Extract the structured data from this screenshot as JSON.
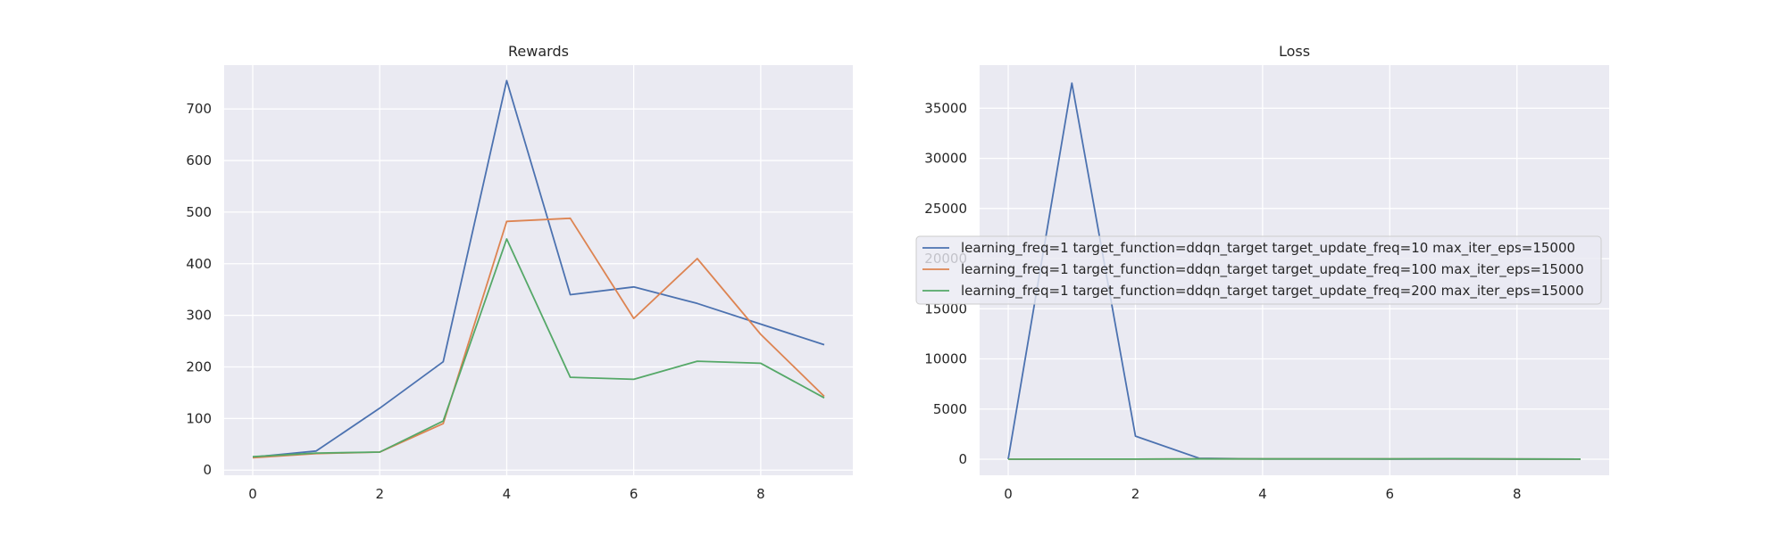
{
  "chart_data": [
    {
      "type": "line",
      "title": "Rewards",
      "xlabel": "",
      "ylabel": "",
      "x": [
        0,
        1,
        2,
        3,
        4,
        5,
        6,
        7,
        8,
        9
      ],
      "xlim": [
        -0.45,
        9.45
      ],
      "ylim": [
        -10,
        785
      ],
      "xticks": [
        0,
        2,
        4,
        6,
        8
      ],
      "yticks": [
        0,
        100,
        200,
        300,
        400,
        500,
        600,
        700
      ],
      "grid": true,
      "series": [
        {
          "name": "learning_freq=1 target_function=ddqn_target target_update_freq=10 max_iter_eps=15000",
          "color": "#4c72b0",
          "values": [
            25,
            37,
            120,
            210,
            755,
            340,
            355,
            323,
            283,
            243
          ]
        },
        {
          "name": "learning_freq=1 target_function=ddqn_target target_update_freq=100 max_iter_eps=15000",
          "color": "#dd8452",
          "values": [
            24,
            32,
            35,
            90,
            482,
            488,
            294,
            410,
            263,
            143
          ]
        },
        {
          "name": "learning_freq=1 target_function=ddqn_target target_update_freq=200 max_iter_eps=15000",
          "color": "#55a868",
          "values": [
            26,
            33,
            35,
            95,
            448,
            180,
            176,
            211,
            207,
            140
          ]
        }
      ]
    },
    {
      "type": "line",
      "title": "Loss",
      "xlabel": "",
      "ylabel": "",
      "x": [
        0,
        1,
        2,
        3,
        4,
        5,
        6,
        7,
        8,
        9
      ],
      "xlim": [
        -0.45,
        9.45
      ],
      "ylim": [
        -1600,
        39300
      ],
      "xticks": [
        0,
        2,
        4,
        6,
        8
      ],
      "yticks": [
        0,
        5000,
        10000,
        15000,
        20000,
        25000,
        30000,
        35000
      ],
      "grid": true,
      "legend_position": "center",
      "series": [
        {
          "name": "learning_freq=1 target_function=ddqn_target target_update_freq=10 max_iter_eps=15000",
          "color": "#4c72b0",
          "values": [
            0,
            37500,
            2300,
            100,
            30,
            25,
            20,
            20,
            15,
            10
          ]
        },
        {
          "name": "learning_freq=1 target_function=ddqn_target target_update_freq=100 max_iter_eps=15000",
          "color": "#dd8452",
          "values": [
            0,
            10,
            10,
            40,
            30,
            30,
            30,
            40,
            20,
            10
          ]
        },
        {
          "name": "learning_freq=1 target_function=ddqn_target target_update_freq=200 max_iter_eps=15000",
          "color": "#55a868",
          "values": [
            0,
            10,
            10,
            30,
            30,
            30,
            30,
            50,
            20,
            10
          ]
        }
      ]
    }
  ]
}
